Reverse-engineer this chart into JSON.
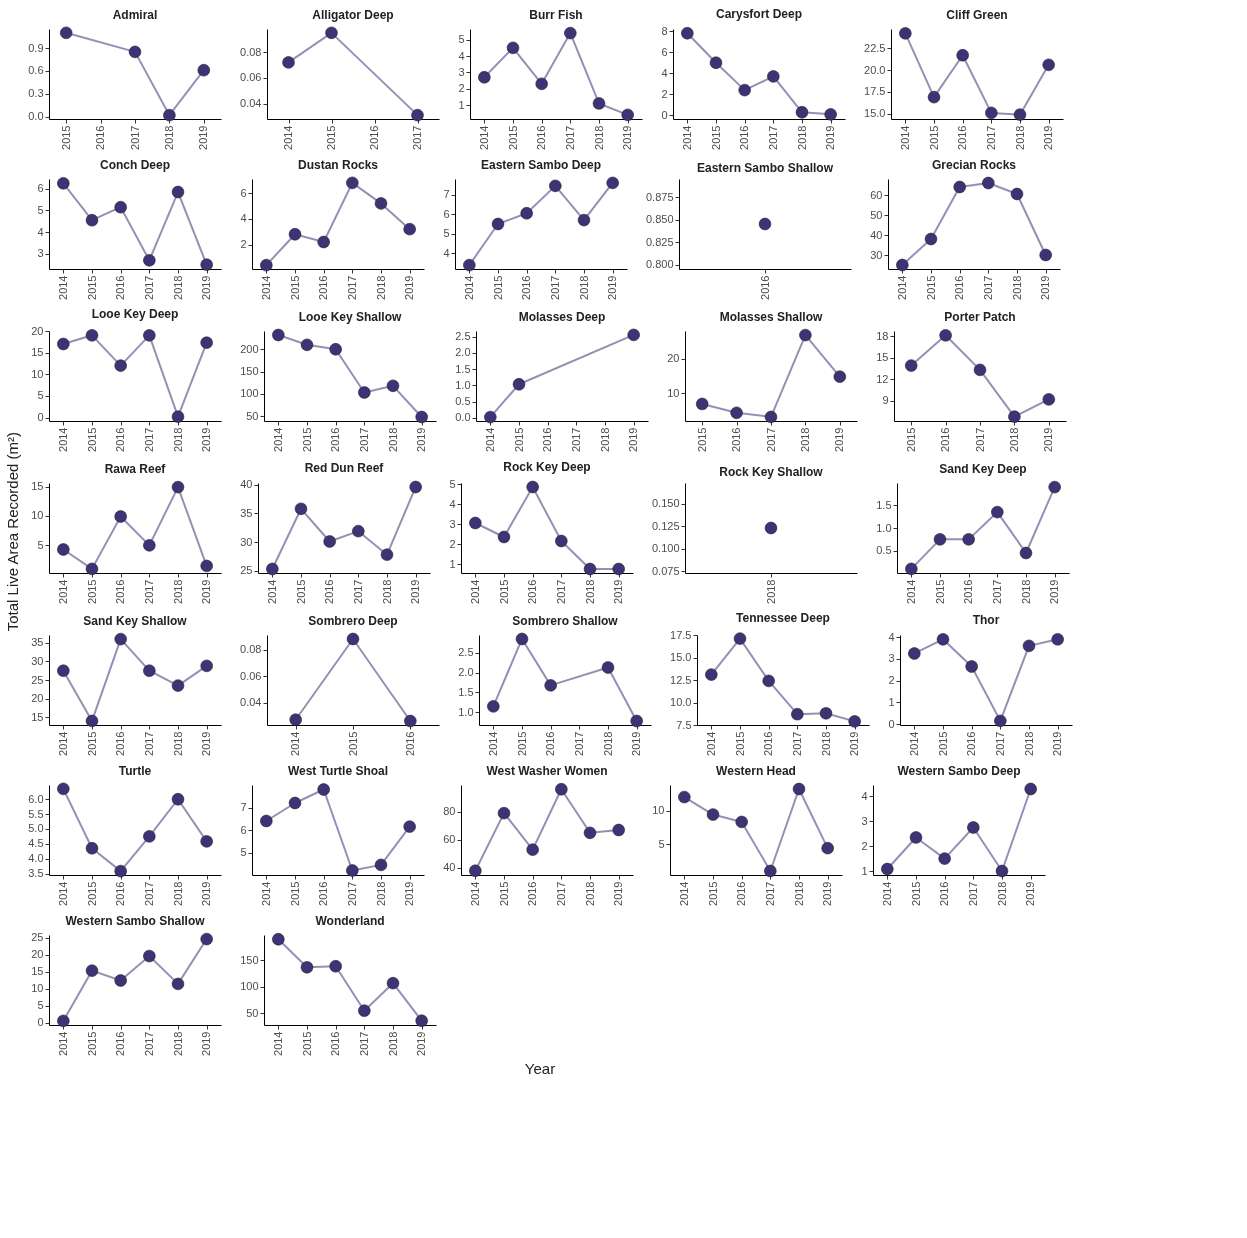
{
  "chart_data": [
    {
      "type": "line",
      "title": "Admiral",
      "categories": [
        "2015",
        "2016",
        "2017",
        "2018",
        "2019"
      ],
      "values": [
        1.1,
        null,
        0.85,
        0.02,
        0.61
      ],
      "color": "#3d3478",
      "marker": "circle",
      "ylim": [
        -0.03,
        1.15
      ],
      "yticks": [
        {
          "value": 0,
          "label": "0.0"
        },
        0.3,
        0.6,
        0.9
      ]
    },
    {
      "type": "line",
      "title": "Alligator Deep",
      "categories": [
        "2014",
        "2015",
        "2016",
        "2017"
      ],
      "values": [
        0.072,
        0.095,
        null,
        0.031
      ],
      "color": "#3d3478",
      "marker": "circle",
      "ylim": [
        0.028,
        0.098
      ],
      "yticks": [
        0.04,
        0.06,
        0.08
      ]
    },
    {
      "type": "line",
      "title": "Burr Fish",
      "categories": [
        "2014",
        "2015",
        "2016",
        "2017",
        "2018",
        "2019"
      ],
      "values": [
        2.7,
        4.5,
        2.3,
        5.4,
        1.1,
        0.4
      ],
      "color": "#3d3478",
      "marker": "circle",
      "ylim": [
        0.15,
        5.65
      ],
      "yticks": [
        1,
        2,
        3,
        4,
        5
      ]
    },
    {
      "type": "line",
      "title": "Carysfort Deep",
      "categories": [
        "2014",
        "2015",
        "2016",
        "2017",
        "2018",
        "2019"
      ],
      "values": [
        7.8,
        5.0,
        2.4,
        3.7,
        0.3,
        0.1
      ],
      "color": "#3d3478",
      "marker": "circle",
      "ylim": [
        -0.34,
        8.2
      ],
      "yticks": [
        0,
        2,
        4,
        6,
        8
      ]
    },
    {
      "type": "line",
      "title": "Cliff Green",
      "categories": [
        "2014",
        "2015",
        "2016",
        "2017",
        "2018",
        "2019"
      ],
      "values": [
        24.2,
        16.9,
        21.7,
        15.1,
        14.9,
        20.6
      ],
      "color": "#3d3478",
      "marker": "circle",
      "ylim": [
        14.4,
        24.7
      ],
      "yticks": [
        {
          "value": 15,
          "label": "15.0"
        },
        17.5,
        {
          "value": 20,
          "label": "20.0"
        },
        22.5
      ]
    },
    {
      "type": "line",
      "title": "Conch Deep",
      "categories": [
        "2014",
        "2015",
        "2016",
        "2017",
        "2018",
        "2019"
      ],
      "values": [
        6.25,
        4.55,
        5.15,
        2.7,
        5.85,
        2.5
      ],
      "color": "#3d3478",
      "marker": "circle",
      "ylim": [
        2.3,
        6.45
      ],
      "yticks": [
        3,
        4,
        5,
        6
      ]
    },
    {
      "type": "line",
      "title": "Dustan Rocks",
      "categories": [
        "2014",
        "2015",
        "2016",
        "2017",
        "2018",
        "2019"
      ],
      "values": [
        0.4,
        2.8,
        2.2,
        6.8,
        5.2,
        3.2
      ],
      "color": "#3d3478",
      "marker": "circle",
      "ylim": [
        0.1,
        7.1
      ],
      "yticks": [
        2,
        4,
        6
      ]
    },
    {
      "type": "line",
      "title": "Eastern Sambo Deep",
      "categories": [
        "2014",
        "2015",
        "2016",
        "2017",
        "2018",
        "2019"
      ],
      "values": [
        3.4,
        5.5,
        6.05,
        7.45,
        5.7,
        7.6
      ],
      "color": "#3d3478",
      "marker": "circle",
      "ylim": [
        3.2,
        7.8
      ],
      "yticks": [
        4,
        5,
        6,
        7
      ]
    },
    {
      "type": "line",
      "title": "Eastern Sambo Shallow",
      "categories": [
        "2016"
      ],
      "values": [
        0.845
      ],
      "color": "#3d3478",
      "marker": "circle",
      "ylim": [
        0.795,
        0.895
      ],
      "yticks": [
        {
          "value": 0.8,
          "label": "0.800"
        },
        0.825,
        {
          "value": 0.85,
          "label": "0.850"
        },
        0.875
      ]
    },
    {
      "type": "line",
      "title": "Grecian Rocks",
      "categories": [
        "2014",
        "2015",
        "2016",
        "2017",
        "2018",
        "2019"
      ],
      "values": [
        25,
        38,
        64,
        66,
        60.5,
        30
      ],
      "color": "#3d3478",
      "marker": "circle",
      "ylim": [
        23,
        68
      ],
      "yticks": [
        30,
        40,
        50,
        60
      ]
    },
    {
      "type": "line",
      "title": "Looe Key Deep",
      "categories": [
        "2014",
        "2015",
        "2016",
        "2017",
        "2018",
        "2019"
      ],
      "values": [
        17,
        19,
        12,
        19,
        0.2,
        17.3
      ],
      "color": "#3d3478",
      "marker": "circle",
      "ylim": [
        -0.8,
        20
      ],
      "yticks": [
        0,
        5,
        10,
        15,
        20
      ]
    },
    {
      "type": "line",
      "title": "Looe Key Shallow",
      "categories": [
        "2014",
        "2015",
        "2016",
        "2017",
        "2018",
        "2019"
      ],
      "values": [
        232,
        210,
        200,
        103,
        118,
        48
      ],
      "color": "#3d3478",
      "marker": "circle",
      "ylim": [
        39,
        241
      ],
      "yticks": [
        50,
        100,
        150,
        200
      ]
    },
    {
      "type": "line",
      "title": "Molasses Deep",
      "categories": [
        "2014",
        "2015",
        "2016",
        "2017",
        "2018",
        "2019"
      ],
      "values": [
        0.02,
        1.03,
        null,
        null,
        null,
        2.55
      ],
      "color": "#3d3478",
      "marker": "circle",
      "ylim": [
        -0.1,
        2.67
      ],
      "yticks": [
        {
          "value": 0,
          "label": "0.0"
        },
        0.5,
        {
          "value": 1,
          "label": "1.0"
        },
        1.5,
        {
          "value": 2,
          "label": "2.0"
        },
        2.5
      ]
    },
    {
      "type": "line",
      "title": "Molasses Shallow",
      "categories": [
        "2015",
        "2016",
        "2017",
        "2018",
        "2019"
      ],
      "values": [
        6.8,
        4.2,
        3.0,
        27,
        14.8
      ],
      "color": "#3d3478",
      "marker": "circle",
      "ylim": [
        1.8,
        28.2
      ],
      "yticks": [
        10,
        20
      ]
    },
    {
      "type": "line",
      "title": "Porter Patch",
      "categories": [
        "2015",
        "2016",
        "2017",
        "2018",
        "2019"
      ],
      "values": [
        13.9,
        18.1,
        13.3,
        6.8,
        9.2
      ],
      "color": "#3d3478",
      "marker": "circle",
      "ylim": [
        6.2,
        18.7
      ],
      "yticks": [
        9,
        12,
        15,
        18
      ]
    },
    {
      "type": "line",
      "title": "Rawa Reef",
      "categories": [
        "2014",
        "2015",
        "2016",
        "2017",
        "2018",
        "2019"
      ],
      "values": [
        4.3,
        1.0,
        9.9,
        5.0,
        14.9,
        1.5
      ],
      "color": "#3d3478",
      "marker": "circle",
      "ylim": [
        0.3,
        15.6
      ],
      "yticks": [
        5,
        10,
        15
      ],
      "ylabel": "Total Live Area Recorded (m²)"
    },
    {
      "type": "line",
      "title": "Red Dun Reef",
      "categories": [
        "2014",
        "2015",
        "2016",
        "2017",
        "2018",
        "2019"
      ],
      "values": [
        25.3,
        35.8,
        30.1,
        31.9,
        27.8,
        39.6
      ],
      "color": "#3d3478",
      "marker": "circle",
      "ylim": [
        24.6,
        40.3
      ],
      "yticks": [
        25,
        30,
        35,
        40
      ]
    },
    {
      "type": "line",
      "title": "Rock Key Deep",
      "categories": [
        "2014",
        "2015",
        "2016",
        "2017",
        "2018",
        "2019"
      ],
      "values": [
        3.05,
        2.35,
        4.85,
        2.15,
        0.75,
        0.75
      ],
      "color": "#3d3478",
      "marker": "circle",
      "ylim": [
        0.55,
        5.05
      ],
      "yticks": [
        1,
        2,
        3,
        4,
        5
      ]
    },
    {
      "type": "line",
      "title": "Rock Key Shallow",
      "categories": [
        "2018"
      ],
      "values": [
        0.123
      ],
      "color": "#3d3478",
      "marker": "circle",
      "ylim": [
        0.073,
        0.173
      ],
      "yticks": [
        0.075,
        {
          "value": 0.1,
          "label": "0.100"
        },
        0.125,
        {
          "value": 0.15,
          "label": "0.150"
        }
      ]
    },
    {
      "type": "line",
      "title": "Sand Key Deep",
      "categories": [
        "2014",
        "2015",
        "2016",
        "2017",
        "2018",
        "2019"
      ],
      "values": [
        0.1,
        0.75,
        0.75,
        1.35,
        0.45,
        1.9
      ],
      "color": "#3d3478",
      "marker": "circle",
      "ylim": [
        0.01,
        1.99
      ],
      "yticks": [
        0.5,
        {
          "value": 1,
          "label": "1.0"
        },
        1.5
      ]
    },
    {
      "type": "line",
      "title": "Sand Key Shallow",
      "categories": [
        "2014",
        "2015",
        "2016",
        "2017",
        "2018",
        "2019"
      ],
      "values": [
        27.5,
        14,
        36,
        27.5,
        23.5,
        28.8
      ],
      "color": "#3d3478",
      "marker": "circle",
      "ylim": [
        12.9,
        37.1
      ],
      "yticks": [
        15,
        20,
        25,
        30,
        35
      ]
    },
    {
      "type": "line",
      "title": "Sombrero Deep",
      "categories": [
        "2014",
        "2015",
        "2016"
      ],
      "values": [
        0.027,
        0.088,
        0.026
      ],
      "color": "#3d3478",
      "marker": "circle",
      "ylim": [
        0.023,
        0.091
      ],
      "yticks": [
        0.04,
        0.06,
        0.08
      ]
    },
    {
      "type": "line",
      "title": "Sombrero Shallow",
      "categories": [
        "2014",
        "2015",
        "2016",
        "2017",
        "2018",
        "2019"
      ],
      "values": [
        1.15,
        2.85,
        1.68,
        null,
        2.13,
        0.78
      ],
      "color": "#3d3478",
      "marker": "circle",
      "ylim": [
        0.68,
        2.95
      ],
      "yticks": [
        {
          "value": 1,
          "label": "1.0"
        },
        1.5,
        {
          "value": 2,
          "label": "2.0"
        },
        2.5
      ]
    },
    {
      "type": "line",
      "title": "Tennessee Deep",
      "categories": [
        "2014",
        "2015",
        "2016",
        "2017",
        "2018",
        "2019"
      ],
      "values": [
        13.1,
        17.1,
        12.4,
        8.7,
        8.8,
        7.9
      ],
      "color": "#3d3478",
      "marker": "circle",
      "ylim": [
        7.5,
        17.5
      ],
      "yticks": [
        7.5,
        {
          "value": 10,
          "label": "10.0"
        },
        12.5,
        {
          "value": 15,
          "label": "15.0"
        },
        17.5
      ]
    },
    {
      "type": "line",
      "title": "Thor",
      "categories": [
        "2014",
        "2015",
        "2016",
        "2017",
        "2018",
        "2019"
      ],
      "values": [
        3.25,
        3.9,
        2.65,
        0.15,
        3.6,
        3.9
      ],
      "color": "#3d3478",
      "marker": "circle",
      "ylim": [
        -0.04,
        4.1
      ],
      "yticks": [
        0,
        1,
        2,
        3,
        4
      ]
    },
    {
      "type": "line",
      "title": "Turtle",
      "categories": [
        "2014",
        "2015",
        "2016",
        "2017",
        "2018",
        "2019"
      ],
      "values": [
        6.35,
        4.35,
        3.58,
        4.75,
        6.0,
        4.58
      ],
      "color": "#3d3478",
      "marker": "circle",
      "ylim": [
        3.45,
        6.48
      ],
      "yticks": [
        3.5,
        {
          "value": 4,
          "label": "4.0"
        },
        4.5,
        {
          "value": 5,
          "label": "5.0"
        },
        5.5,
        {
          "value": 6,
          "label": "6.0"
        }
      ]
    },
    {
      "type": "line",
      "title": "West Turtle Shoal",
      "categories": [
        "2014",
        "2015",
        "2016",
        "2017",
        "2018",
        "2019"
      ],
      "values": [
        6.4,
        7.2,
        7.8,
        4.2,
        4.45,
        6.15
      ],
      "color": "#3d3478",
      "marker": "circle",
      "ylim": [
        4.0,
        8.0
      ],
      "yticks": [
        5,
        6,
        7
      ]
    },
    {
      "type": "line",
      "title": "West Washer Women",
      "categories": [
        "2014",
        "2015",
        "2016",
        "2017",
        "2018",
        "2019"
      ],
      "values": [
        38,
        79,
        53,
        96,
        65,
        67
      ],
      "color": "#3d3478",
      "marker": "circle",
      "ylim": [
        35,
        99
      ],
      "yticks": [
        40,
        60,
        80
      ]
    },
    {
      "type": "line",
      "title": "Western Head",
      "categories": [
        "2014",
        "2015",
        "2016",
        "2017",
        "2018",
        "2019"
      ],
      "values": [
        12,
        9.4,
        8.3,
        1.0,
        13.2,
        4.4
      ],
      "color": "#3d3478",
      "marker": "circle",
      "ylim": [
        0.4,
        13.8
      ],
      "yticks": [
        5,
        10
      ]
    },
    {
      "type": "line",
      "title": "Western Sambo Deep",
      "categories": [
        "2014",
        "2015",
        "2016",
        "2017",
        "2018",
        "2019"
      ],
      "values": [
        1.08,
        2.35,
        1.5,
        2.75,
        1.0,
        4.3
      ],
      "color": "#3d3478",
      "marker": "circle",
      "ylim": [
        0.84,
        4.46
      ],
      "yticks": [
        1,
        2,
        3,
        4
      ]
    },
    {
      "type": "line",
      "title": "Western Sambo Shallow",
      "categories": [
        "2014",
        "2015",
        "2016",
        "2017",
        "2018",
        "2019"
      ],
      "values": [
        0.5,
        15.3,
        12.4,
        19.6,
        11.4,
        24.6
      ],
      "color": "#3d3478",
      "marker": "circle",
      "ylim": [
        -0.7,
        25.8
      ],
      "yticks": [
        0,
        5,
        10,
        15,
        20,
        25
      ]
    },
    {
      "type": "line",
      "title": "Wonderland",
      "categories": [
        "2014",
        "2015",
        "2016",
        "2017",
        "2018",
        "2019"
      ],
      "values": [
        190,
        137,
        139,
        55,
        107,
        36
      ],
      "color": "#3d3478",
      "marker": "circle",
      "ylim": [
        28,
        198
      ],
      "yticks": [
        50,
        100,
        150
      ],
      "xlabel": "Year"
    }
  ]
}
